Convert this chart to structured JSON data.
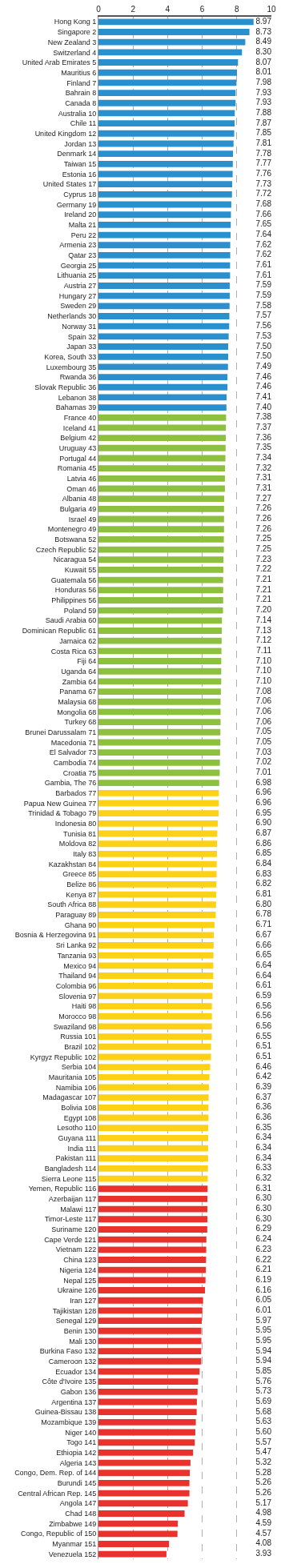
{
  "chart_data": {
    "type": "bar",
    "orientation": "horizontal",
    "grid": "x",
    "xlim": [
      0,
      10
    ],
    "xticks": [
      0,
      2,
      4,
      6,
      8,
      10
    ],
    "categories": [
      "Hong Kong 1",
      "Singapore 2",
      "New Zealand 3",
      "Switzerland 4",
      "United Arab Emirates 5",
      "Mauritius 6",
      "Finland 7",
      "Bahrain 8",
      "Canada 8",
      "Australia 10",
      "Chile 11",
      "United Kingdom 12",
      "Jordan 13",
      "Denmark 14",
      "Taiwan 15",
      "Estonia 16",
      "United States 17",
      "Cyprus 18",
      "Germany 19",
      "Ireland 20",
      "Malta 21",
      "Peru 22",
      "Armenia 23",
      "Qatar 23",
      "Georgia 25",
      "Lithuania 25",
      "Austria 27",
      "Hungary 27",
      "Sweden 29",
      "Netherlands 30",
      "Norway 31",
      "Spain 32",
      "Japan 33",
      "Korea, South 33",
      "Luxembourg 35",
      "Rwanda 36",
      "Slovak Republic 36",
      "Lebanon 38",
      "Bahamas 39",
      "France 40",
      "Iceland 41",
      "Belgium 42",
      "Uruguay 43",
      "Portugal 44",
      "Romania 45",
      "Latvia 46",
      "Oman 46",
      "Albania 48",
      "Bulgaria 49",
      "Israel 49",
      "Montenegro 49",
      "Botswana 52",
      "Czech Republic 52",
      "Nicaragua 54",
      "Kuwait 55",
      "Guatemala 56",
      "Honduras 56",
      "Philippines 56",
      "Poland 59",
      "Saudi Arabia 60",
      "Dominican Republic 61",
      "Jamaica 62",
      "Costa Rica 63",
      "Fiji 64",
      "Uganda 64",
      "Zambia 64",
      "Panama 67",
      "Malaysia 68",
      "Mongolia 68",
      "Turkey 68",
      "Brunei Darussalam 71",
      "Macedonia 71",
      "El Salvador 73",
      "Cambodia 74",
      "Croatia 75",
      "Gambia, The 76",
      "Barbados 77",
      "Papua New Guinea 77",
      "Trinidad & Tobago 79",
      "Indonesia 80",
      "Tunisia 81",
      "Moldova 82",
      "Italy 83",
      "Kazakhstan 84",
      "Greece 85",
      "Belize 86",
      "Kenya 87",
      "South Africa 88",
      "Paraguay 89",
      "Ghana 90",
      "Bosnia & Herzegovina 91",
      "Sri Lanka 92",
      "Tanzania 93",
      "Mexico 94",
      "Thailand 94",
      "Colombia 96",
      "Slovenia 97",
      "Haiti 98",
      "Morocco 98",
      "Swaziland 98",
      "Russia 101",
      "Brazil 102",
      "Kyrgyz Republic 102",
      "Serbia 104",
      "Mauritania 105",
      "Namibia 106",
      "Madagascar 107",
      "Bolivia 108",
      "Egypt 108",
      "Lesotho 110",
      "Guyana 111",
      "India 111",
      "Pakistan 111",
      "Bangladesh 114",
      "Sierra Leone 115",
      "Yemen, Republic 116",
      "Azerbaijan 117",
      "Malawi 117",
      "Timor-Leste 117",
      "Suriname 120",
      "Cape Verde 121",
      "Vietnam 122",
      "China 123",
      "Nigeria 124",
      "Nepal 125",
      "Ukraine 126",
      "Iran 127",
      "Tajikistan 128",
      "Senegal 129",
      "Benin 130",
      "Mali 130",
      "Burkina Faso 132",
      "Cameroon 132",
      "Ecuador 134",
      "Côte d'Ivoire 135",
      "Gabon 136",
      "Argentina 137",
      "Guinea-Bissau 138",
      "Mozambique 139",
      "Niger 140",
      "Togo 141",
      "Ethiopia 142",
      "Algeria 143",
      "Congo, Dem. Rep. of 144",
      "Burundi 145",
      "Central African Rep. 145",
      "Angola 147",
      "Chad 148",
      "Zimbabwe 149",
      "Congo, Republic of 150",
      "Myanmar 151",
      "Venezuela 152"
    ],
    "values": [
      8.97,
      8.73,
      8.49,
      8.3,
      8.07,
      8.01,
      7.98,
      7.93,
      7.93,
      7.88,
      7.87,
      7.85,
      7.81,
      7.78,
      7.77,
      7.76,
      7.73,
      7.72,
      7.68,
      7.66,
      7.65,
      7.64,
      7.62,
      7.62,
      7.61,
      7.61,
      7.59,
      7.59,
      7.58,
      7.57,
      7.56,
      7.53,
      7.5,
      7.5,
      7.49,
      7.46,
      7.46,
      7.41,
      7.4,
      7.38,
      7.37,
      7.36,
      7.35,
      7.34,
      7.32,
      7.31,
      7.31,
      7.27,
      7.26,
      7.26,
      7.26,
      7.25,
      7.25,
      7.23,
      7.22,
      7.21,
      7.21,
      7.21,
      7.2,
      7.14,
      7.13,
      7.12,
      7.11,
      7.1,
      7.1,
      7.1,
      7.08,
      7.06,
      7.06,
      7.06,
      7.05,
      7.05,
      7.03,
      7.02,
      7.01,
      6.98,
      6.96,
      6.96,
      6.95,
      6.9,
      6.87,
      6.86,
      6.85,
      6.84,
      6.83,
      6.82,
      6.81,
      6.8,
      6.78,
      6.71,
      6.67,
      6.66,
      6.65,
      6.64,
      6.64,
      6.61,
      6.59,
      6.56,
      6.56,
      6.56,
      6.55,
      6.51,
      6.51,
      6.46,
      6.42,
      6.39,
      6.37,
      6.36,
      6.36,
      6.35,
      6.34,
      6.34,
      6.34,
      6.33,
      6.32,
      6.31,
      6.3,
      6.3,
      6.3,
      6.29,
      6.24,
      6.23,
      6.22,
      6.21,
      6.19,
      6.16,
      6.05,
      6.01,
      5.97,
      5.95,
      5.95,
      5.94,
      5.94,
      5.85,
      5.76,
      5.73,
      5.69,
      5.68,
      5.63,
      5.6,
      5.57,
      5.47,
      5.32,
      5.28,
      5.26,
      5.26,
      5.17,
      4.98,
      4.59,
      4.57,
      4.08,
      3.93
    ],
    "value_labels": [
      "8.97",
      "8.73",
      "8.49",
      "8.30",
      "8.07",
      "8.01",
      "7.98",
      "7.93",
      "7.93",
      "7.88",
      "7.87",
      "7.85",
      "7.81",
      "7.78",
      "7.77",
      "7.76",
      "7.73",
      "7.72",
      "7.68",
      "7.66",
      "7.65",
      "7.64",
      "7.62",
      "7.62",
      "7.61",
      "7.61",
      "7.59",
      "7.59",
      "7.58",
      "7.57",
      "7.56",
      "7.53",
      "7.50",
      "7.50",
      "7.49",
      "7.46",
      "7.46",
      "7.41",
      "7.40",
      "7.38",
      "7.37",
      "7.36",
      "7.35",
      "7.34",
      "7.32",
      "7.31",
      "7.31",
      "7.27",
      "7.26",
      "7.26",
      "7.26",
      "7.25",
      "7.25",
      "7.23",
      "7.22",
      "7.21",
      "7.21",
      "7.21",
      "7.20",
      "7.14",
      "7.13",
      "7.12",
      "7.11",
      "7.10",
      "7.10",
      "7.10",
      "7.08",
      "7.06",
      "7.06",
      "7.06",
      "7.05",
      "7.05",
      "7.03",
      "7.02",
      "7.01",
      "6.98",
      "6.96",
      "6.96",
      "6.95",
      "6.90",
      "6.87",
      "6.86",
      "6.85",
      "6.84",
      "6.83",
      "6.82",
      "6.81",
      "6.80",
      "6.78",
      "6.71",
      "6.67",
      "6.66",
      "6.65",
      "6.64",
      "6.64",
      "6.61",
      "6.59",
      "6.56",
      "6.56",
      "6.56",
      "6.55",
      "6.51",
      "6.51",
      "6.46",
      "6.42",
      "6.39",
      "6.37",
      "6.36",
      "6.36",
      "6.35",
      "6.34",
      "6.34",
      "6.34",
      "6.33",
      "6.32",
      "6.31",
      "6.30",
      "6.30",
      "6.30",
      "6.29",
      "6.24",
      "6.23",
      "6.22",
      "6.21",
      "6.19",
      "6.16",
      "6.05",
      "6.01",
      "5.97",
      "5.95",
      "5.95",
      "5.94",
      "5.94",
      "5.85",
      "5.76",
      "5.73",
      "5.69",
      "5.68",
      "5.63",
      "5.60",
      "5.57",
      "5.47",
      "5.32",
      "5.28",
      "5.26",
      "5.26",
      "5.17",
      "4.98",
      "4.59",
      "4.57",
      "4.08",
      "3.93"
    ],
    "colors": [
      "#2a8fcd",
      "#2a8fcd",
      "#2a8fcd",
      "#2a8fcd",
      "#2a8fcd",
      "#2a8fcd",
      "#2a8fcd",
      "#2a8fcd",
      "#2a8fcd",
      "#2a8fcd",
      "#2a8fcd",
      "#2a8fcd",
      "#2a8fcd",
      "#2a8fcd",
      "#2a8fcd",
      "#2a8fcd",
      "#2a8fcd",
      "#2a8fcd",
      "#2a8fcd",
      "#2a8fcd",
      "#2a8fcd",
      "#2a8fcd",
      "#2a8fcd",
      "#2a8fcd",
      "#2a8fcd",
      "#2a8fcd",
      "#2a8fcd",
      "#2a8fcd",
      "#2a8fcd",
      "#2a8fcd",
      "#2a8fcd",
      "#2a8fcd",
      "#2a8fcd",
      "#2a8fcd",
      "#2a8fcd",
      "#2a8fcd",
      "#2a8fcd",
      "#2a8fcd",
      "#2a8fcd",
      "#8cc03e",
      "#8cc03e",
      "#8cc03e",
      "#8cc03e",
      "#8cc03e",
      "#8cc03e",
      "#8cc03e",
      "#8cc03e",
      "#8cc03e",
      "#8cc03e",
      "#8cc03e",
      "#8cc03e",
      "#8cc03e",
      "#8cc03e",
      "#8cc03e",
      "#8cc03e",
      "#8cc03e",
      "#8cc03e",
      "#8cc03e",
      "#8cc03e",
      "#8cc03e",
      "#8cc03e",
      "#8cc03e",
      "#8cc03e",
      "#8cc03e",
      "#8cc03e",
      "#8cc03e",
      "#8cc03e",
      "#8cc03e",
      "#8cc03e",
      "#8cc03e",
      "#8cc03e",
      "#8cc03e",
      "#8cc03e",
      "#8cc03e",
      "#8cc03e",
      "#8cc03e",
      "#fcd116",
      "#fcd116",
      "#fcd116",
      "#fcd116",
      "#fcd116",
      "#fcd116",
      "#fcd116",
      "#fcd116",
      "#fcd116",
      "#fcd116",
      "#fcd116",
      "#fcd116",
      "#fcd116",
      "#fcd116",
      "#fcd116",
      "#fcd116",
      "#fcd116",
      "#fcd116",
      "#fcd116",
      "#fcd116",
      "#fcd116",
      "#fcd116",
      "#fcd116",
      "#fcd116",
      "#fcd116",
      "#fcd116",
      "#fcd116",
      "#fcd116",
      "#fcd116",
      "#fcd116",
      "#fcd116",
      "#fcd116",
      "#fcd116",
      "#fcd116",
      "#fcd116",
      "#fcd116",
      "#fcd116",
      "#fcd116",
      "#fcd116",
      "#e8322b",
      "#e8322b",
      "#e8322b",
      "#e8322b",
      "#e8322b",
      "#e8322b",
      "#e8322b",
      "#e8322b",
      "#e8322b",
      "#e8322b",
      "#e8322b",
      "#e8322b",
      "#e8322b",
      "#e8322b",
      "#e8322b",
      "#e8322b",
      "#e8322b",
      "#e8322b",
      "#e8322b",
      "#e8322b",
      "#e8322b",
      "#e8322b",
      "#e8322b",
      "#e8322b",
      "#e8322b",
      "#e8322b",
      "#e8322b",
      "#e8322b",
      "#e8322b",
      "#e8322b",
      "#e8322b",
      "#e8322b",
      "#e8322b",
      "#e8322b",
      "#e8322b",
      "#e8322b",
      "#e8322b"
    ]
  }
}
